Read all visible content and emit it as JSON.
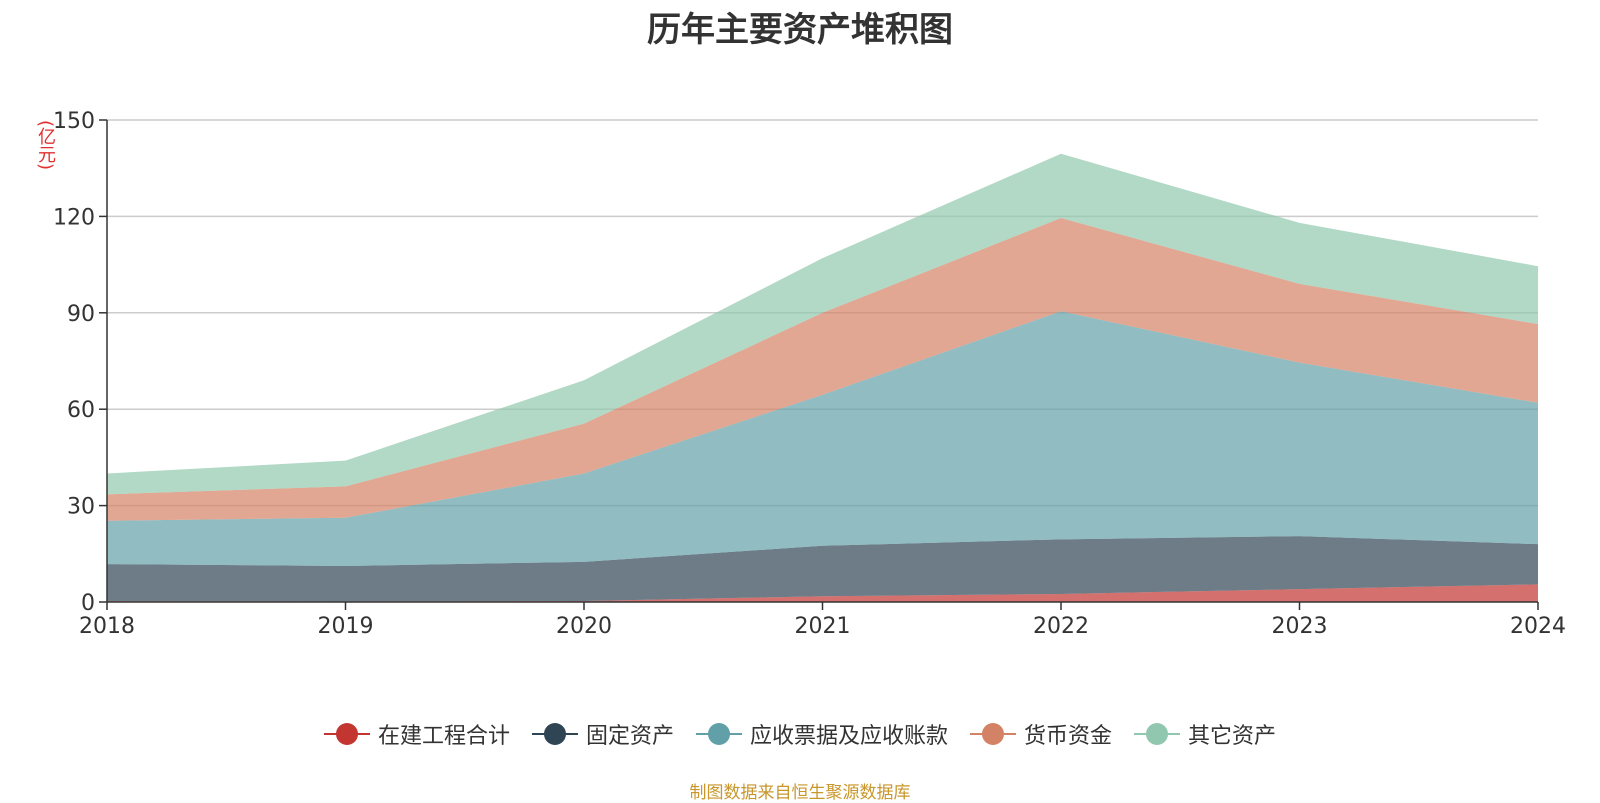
{
  "chart_data": {
    "type": "area",
    "title": "历年主要资产堆积图",
    "ylabel": "(亿元)",
    "xlabel": "",
    "x": [
      "2018",
      "2019",
      "2020",
      "2021",
      "2022",
      "2023",
      "2024"
    ],
    "ylim": [
      0,
      150
    ],
    "yticks": [
      0,
      30,
      60,
      90,
      120,
      150
    ],
    "stacked": true,
    "grid": true,
    "legend_position": "bottom",
    "series": [
      {
        "name": "在建工程合计",
        "color": "#c23531",
        "values": [
          0.3,
          0.2,
          0.3,
          1.8,
          2.5,
          4.0,
          5.5
        ]
      },
      {
        "name": "固定资产",
        "color": "#2f4554",
        "values": [
          11.5,
          11.0,
          12.2,
          15.7,
          17.0,
          16.5,
          12.5
        ]
      },
      {
        "name": "应收票据及应收账款",
        "color": "#61a0a8",
        "values": [
          13.5,
          15.0,
          27.5,
          47.0,
          71.0,
          54.0,
          44.0
        ]
      },
      {
        "name": "货币资金",
        "color": "#d48265",
        "values": [
          8.2,
          9.8,
          15.5,
          25.5,
          29.0,
          24.5,
          24.5
        ]
      },
      {
        "name": "其它资产",
        "color": "#91c7ae",
        "values": [
          6.5,
          8.0,
          13.5,
          17.0,
          20.0,
          19.0,
          18.0
        ]
      }
    ]
  },
  "source_note": "制图数据来自恒生聚源数据库"
}
